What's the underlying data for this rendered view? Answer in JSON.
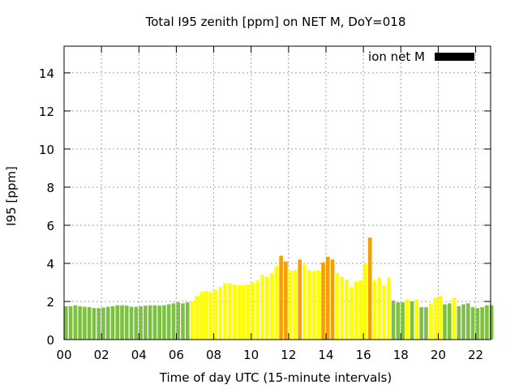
{
  "chart_data": {
    "type": "bar",
    "title": "Total I95 zenith [ppm] on NET M, DoY=018",
    "xlabel": "Time of day UTC (15-minute intervals)",
    "ylabel": "I95 [ppm]",
    "ylim": [
      0,
      15.4
    ],
    "yticks": [
      0,
      2,
      4,
      6,
      8,
      10,
      12,
      14
    ],
    "xlim": [
      0,
      22.8
    ],
    "xticks": [
      0,
      2,
      4,
      6,
      8,
      10,
      12,
      14,
      16,
      18,
      20,
      22
    ],
    "xticklabels": [
      "00",
      "02",
      "04",
      "06",
      "08",
      "10",
      "12",
      "14",
      "16",
      "18",
      "20",
      "22"
    ],
    "grid": true,
    "legend": {
      "position": "top-right",
      "label": "ion net M",
      "color": "#000000"
    },
    "interval_hours": 0.25,
    "colors": {
      "green": "#7dc142",
      "yellow": "#ffff00",
      "orange": "#f5a000"
    },
    "values": [
      1.75,
      1.75,
      1.8,
      1.75,
      1.72,
      1.7,
      1.65,
      1.65,
      1.68,
      1.72,
      1.75,
      1.8,
      1.8,
      1.78,
      1.72,
      1.72,
      1.75,
      1.78,
      1.8,
      1.8,
      1.78,
      1.8,
      1.85,
      1.9,
      1.95,
      1.9,
      1.95,
      2.0,
      2.3,
      2.5,
      2.55,
      2.5,
      2.6,
      2.75,
      2.95,
      2.95,
      2.9,
      2.85,
      2.85,
      2.9,
      3.0,
      3.1,
      3.4,
      3.3,
      3.5,
      3.85,
      4.4,
      4.1,
      3.6,
      3.65,
      4.2,
      3.95,
      3.65,
      3.6,
      3.65,
      4.05,
      4.35,
      4.2,
      3.5,
      3.3,
      3.15,
      2.75,
      3.05,
      3.1,
      4.0,
      5.35,
      3.1,
      3.25,
      2.85,
      3.25,
      2.05,
      1.95,
      1.95,
      2.1,
      2.0,
      2.1,
      1.7,
      1.7,
      1.9,
      2.2,
      2.3,
      1.85,
      1.9,
      2.2,
      1.75,
      1.85,
      1.9,
      1.7,
      1.65,
      1.7,
      1.8,
      1.8
    ],
    "bar_colors": [
      "green",
      "green",
      "green",
      "green",
      "green",
      "green",
      "green",
      "green",
      "green",
      "green",
      "green",
      "green",
      "green",
      "green",
      "green",
      "green",
      "green",
      "green",
      "green",
      "green",
      "green",
      "green",
      "green",
      "green",
      "green",
      "green",
      "green",
      "yellow",
      "yellow",
      "yellow",
      "yellow",
      "yellow",
      "yellow",
      "yellow",
      "yellow",
      "yellow",
      "yellow",
      "yellow",
      "yellow",
      "yellow",
      "yellow",
      "yellow",
      "yellow",
      "yellow",
      "yellow",
      "yellow",
      "orange",
      "orange",
      "yellow",
      "yellow",
      "orange",
      "yellow",
      "yellow",
      "yellow",
      "yellow",
      "orange",
      "orange",
      "orange",
      "yellow",
      "yellow",
      "yellow",
      "yellow",
      "yellow",
      "yellow",
      "yellow",
      "orange",
      "yellow",
      "yellow",
      "yellow",
      "yellow",
      "green",
      "green",
      "green",
      "yellow",
      "green",
      "yellow",
      "green",
      "green",
      "yellow",
      "yellow",
      "yellow",
      "green",
      "green",
      "yellow",
      "green",
      "green",
      "green",
      "green",
      "green",
      "green",
      "green",
      "green"
    ]
  }
}
